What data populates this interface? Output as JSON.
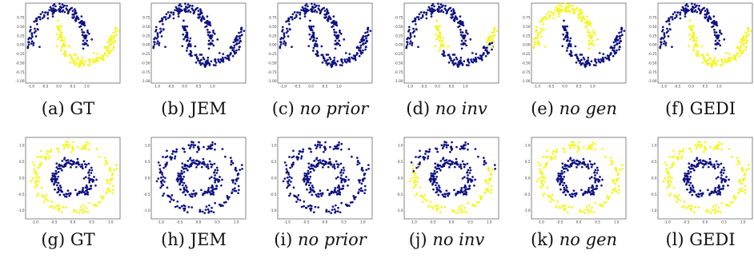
{
  "colors": {
    "class_0": "#0d1080",
    "class_1": "#f5f524",
    "axes": "#333333"
  },
  "rows": [
    {
      "dataset": "moons",
      "x_ticks": [
        "-1.0",
        "-0.5",
        "0.0",
        "0.5",
        "1.0"
      ],
      "y_ticks": [
        "0.75",
        "0.50",
        "0.25",
        "0.00",
        "-0.25",
        "-0.50",
        "-0.75",
        "-1.00"
      ],
      "panels": [
        {
          "label": "(a)",
          "name": "GT",
          "italic": false,
          "prediction": "ground-truth"
        },
        {
          "label": "(b)",
          "name": "JEM",
          "italic": false,
          "prediction": "all-class-0"
        },
        {
          "label": "(c)",
          "name": "no prior",
          "italic": true,
          "prediction": "all-class-0"
        },
        {
          "label": "(d)",
          "name": "no inv",
          "italic": true,
          "prediction": "mixed"
        },
        {
          "label": "(e)",
          "name": "no gen",
          "italic": true,
          "prediction": "inverted"
        },
        {
          "label": "(f)",
          "name": "GEDI",
          "italic": false,
          "prediction": "ground-truth"
        }
      ]
    },
    {
      "dataset": "circles",
      "x_ticks": [
        "-1.0",
        "-0.5",
        "0.0",
        "0.5",
        "1.0"
      ],
      "y_ticks": [
        "1.0",
        "0.5",
        "0.0",
        "-0.5",
        "-1.0"
      ],
      "panels": [
        {
          "label": "(g)",
          "name": "GT",
          "italic": false,
          "prediction": "ground-truth"
        },
        {
          "label": "(h)",
          "name": "JEM",
          "italic": false,
          "prediction": "all-class-0"
        },
        {
          "label": "(i)",
          "name": "no prior",
          "italic": true,
          "prediction": "all-class-0"
        },
        {
          "label": "(j)",
          "name": "no inv",
          "italic": true,
          "prediction": "mixed"
        },
        {
          "label": "(k)",
          "name": "no gen",
          "italic": true,
          "prediction": "ground-truth"
        },
        {
          "label": "(l)",
          "name": "GEDI",
          "italic": false,
          "prediction": "ground-truth"
        }
      ]
    }
  ]
}
